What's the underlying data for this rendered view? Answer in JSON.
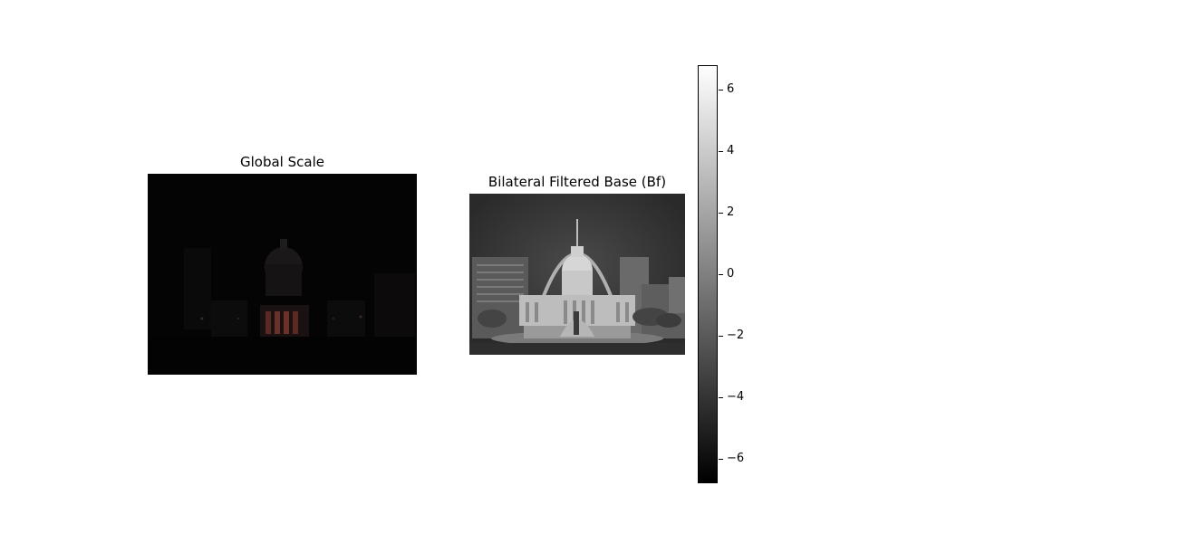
{
  "left_panel": {
    "title": "Global Scale"
  },
  "right_panel": {
    "title": "Bilateral Filtered Base (Bf)"
  },
  "colorbar": {
    "ticks": [
      "6",
      "4",
      "2",
      "0",
      "−2",
      "−4",
      "−6"
    ],
    "range": [
      -6.8,
      6.8
    ],
    "gradient_colors": [
      "#000000",
      "#ffffff"
    ]
  }
}
